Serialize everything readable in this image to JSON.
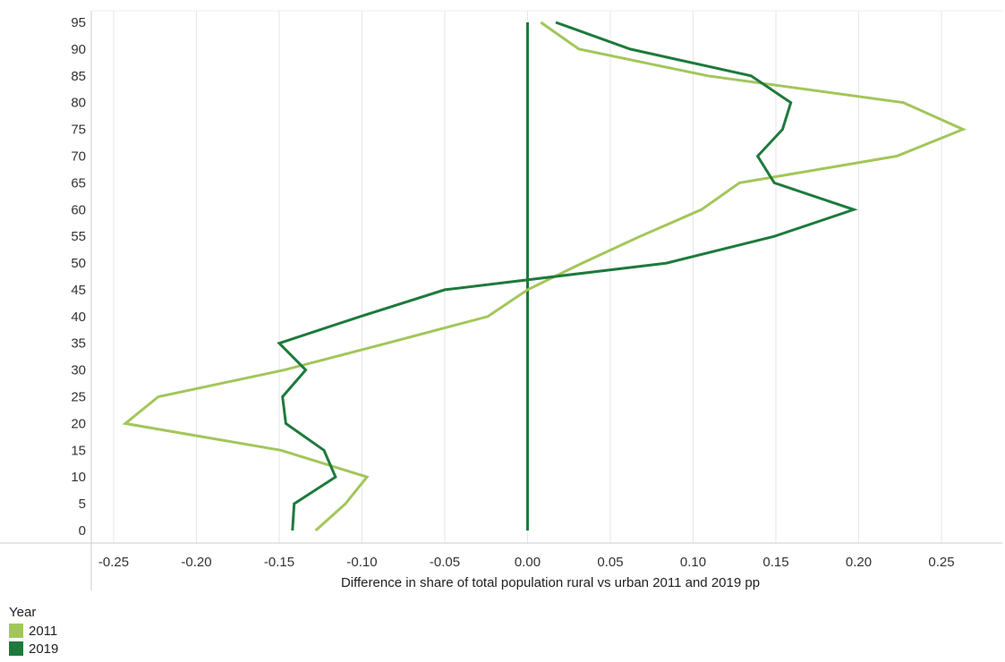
{
  "chart_data": {
    "type": "line",
    "title": "",
    "xlabel": "Difference in share of total population rural vs urban 2011 and 2019 pp",
    "ylabel": "",
    "xlim": [
      -0.27,
      0.29
    ],
    "ylim": [
      0,
      95
    ],
    "x_ticks": [
      -0.25,
      -0.2,
      -0.15,
      -0.1,
      -0.05,
      0.0,
      0.05,
      0.1,
      0.15,
      0.2,
      0.25
    ],
    "x_tick_labels": [
      "-0.25",
      "-0.20",
      "-0.15",
      "-0.10",
      "-0.05",
      "0.00",
      "0.05",
      "0.10",
      "0.15",
      "0.20",
      "0.25"
    ],
    "y_ticks": [
      0,
      5,
      10,
      15,
      20,
      25,
      30,
      35,
      40,
      45,
      50,
      55,
      60,
      65,
      70,
      75,
      80,
      85,
      90,
      95
    ],
    "y_tick_labels": [
      "0",
      "5",
      "10",
      "15",
      "20",
      "25",
      "30",
      "35",
      "40",
      "45",
      "50",
      "55",
      "60",
      "65",
      "70",
      "75",
      "80",
      "85",
      "90",
      "95"
    ],
    "grid": "vertical",
    "legend": {
      "title": "Year",
      "position": "bottom-left"
    },
    "zero_line": {
      "x": 0.0,
      "y_from": 0,
      "y_to": 95,
      "color": "#1e7a3c"
    },
    "series": [
      {
        "name": "2011",
        "color": "#a3c65a",
        "y": [
          0,
          5,
          10,
          15,
          20,
          25,
          30,
          35,
          40,
          45,
          50,
          55,
          60,
          65,
          70,
          75,
          80,
          85,
          90,
          95
        ],
        "x": [
          -0.128,
          -0.11,
          -0.097,
          -0.149,
          -0.243,
          -0.223,
          -0.147,
          -0.085,
          -0.024,
          0.0,
          0.033,
          0.068,
          0.105,
          0.128,
          0.223,
          0.263,
          0.227,
          0.109,
          0.031,
          0.008
        ]
      },
      {
        "name": "2019",
        "color": "#1e7a3c",
        "y": [
          0,
          5,
          10,
          15,
          20,
          25,
          30,
          35,
          40,
          45,
          50,
          55,
          60,
          65,
          70,
          75,
          80,
          85,
          90,
          95
        ],
        "x": [
          -0.142,
          -0.141,
          -0.116,
          -0.123,
          -0.146,
          -0.148,
          -0.134,
          -0.15,
          -0.101,
          -0.05,
          0.084,
          0.149,
          0.197,
          0.149,
          0.139,
          0.154,
          0.159,
          0.135,
          0.062,
          0.017
        ]
      }
    ]
  }
}
